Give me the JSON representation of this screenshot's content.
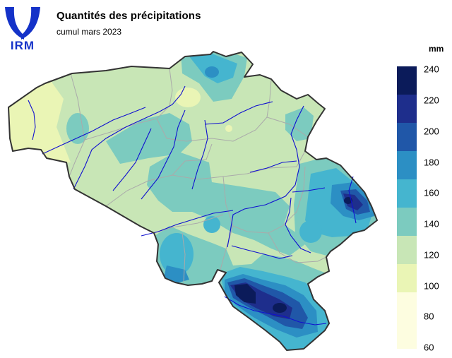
{
  "logo": {
    "text": "IRM",
    "color": "#1432c8"
  },
  "title": "Quantités des précipitations",
  "subtitle": "cumul mars 2023",
  "legend": {
    "unit": "mm",
    "ticks": [
      "240",
      "220",
      "200",
      "180",
      "160",
      "140",
      "120",
      "100",
      "80",
      "60"
    ],
    "classes": [
      {
        "range": "220-240",
        "color": "#0b1b5a"
      },
      {
        "range": "200-220",
        "color": "#1e2e8c"
      },
      {
        "range": "180-200",
        "color": "#2057a8"
      },
      {
        "range": "160-180",
        "color": "#2c8fc4"
      },
      {
        "range": "140-160",
        "color": "#45b5cf"
      },
      {
        "range": "120-140",
        "color": "#7ccbbf"
      },
      {
        "range": "100-120",
        "color": "#c8e6b6"
      },
      {
        "range": "80-100",
        "color": "#eaf5b5"
      },
      {
        "range": "60-80",
        "color": "#fdfde0"
      }
    ]
  },
  "map": {
    "country_border_color": "#333333",
    "province_border_color": "#aaaaaa",
    "river_color": "#1010d0"
  }
}
